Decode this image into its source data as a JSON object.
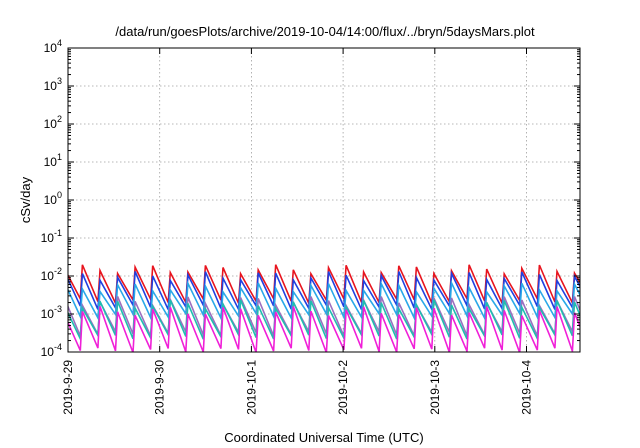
{
  "chart_data": {
    "type": "line",
    "title": "/data/run/goesPlots/archive/2019-10-04/14:00/flux/../bryn/5daysMars.plot",
    "xlabel": "Coordinated Universal Time (UTC)",
    "ylabel": "cSv/day",
    "yscale": "log",
    "ylim": [
      0.0001,
      10000
    ],
    "y_ticks": [
      {
        "value": 0.0001,
        "base": "10",
        "exp": "-4"
      },
      {
        "value": 0.001,
        "base": "10",
        "exp": "-3"
      },
      {
        "value": 0.01,
        "base": "10",
        "exp": "-2"
      },
      {
        "value": 0.1,
        "base": "10",
        "exp": "-1"
      },
      {
        "value": 1,
        "base": "10",
        "exp": "0"
      },
      {
        "value": 10,
        "base": "10",
        "exp": "1"
      },
      {
        "value": 100,
        "base": "10",
        "exp": "2"
      },
      {
        "value": 1000,
        "base": "10",
        "exp": "3"
      },
      {
        "value": 10000,
        "base": "10",
        "exp": "4"
      }
    ],
    "xlim": [
      "2019-09-29T00:00",
      "2019-10-04T14:00"
    ],
    "x_ticks": [
      {
        "value": "2019-09-29T00:00",
        "label": "2019-9-29"
      },
      {
        "value": "2019-09-30T00:00",
        "label": "2019-9-30"
      },
      {
        "value": "2019-10-01T00:00",
        "label": "2019-10-1"
      },
      {
        "value": "2019-10-02T00:00",
        "label": "2019-10-2"
      },
      {
        "value": "2019-10-03T00:00",
        "label": "2019-10-3"
      },
      {
        "value": "2019-10-04T00:00",
        "label": "2019-10-4"
      }
    ],
    "grid": true,
    "legend": "none",
    "sawtooth_period_hours": 4.6,
    "series": [
      {
        "color": "#e8141e",
        "peak": 0.015,
        "trough": 0.0022
      },
      {
        "color": "#2040e0",
        "peak": 0.01,
        "trough": 0.0015
      },
      {
        "color": "#2aa8e8",
        "peak": 0.005,
        "trough": 0.0009
      },
      {
        "color": "#9a70c0",
        "peak": 0.0022,
        "trough": 0.0003
      },
      {
        "color": "#1fbdb0",
        "peak": 0.0018,
        "trough": 0.00025
      },
      {
        "color": "#f020d8",
        "peak": 0.0012,
        "trough": 0.00011
      }
    ]
  }
}
